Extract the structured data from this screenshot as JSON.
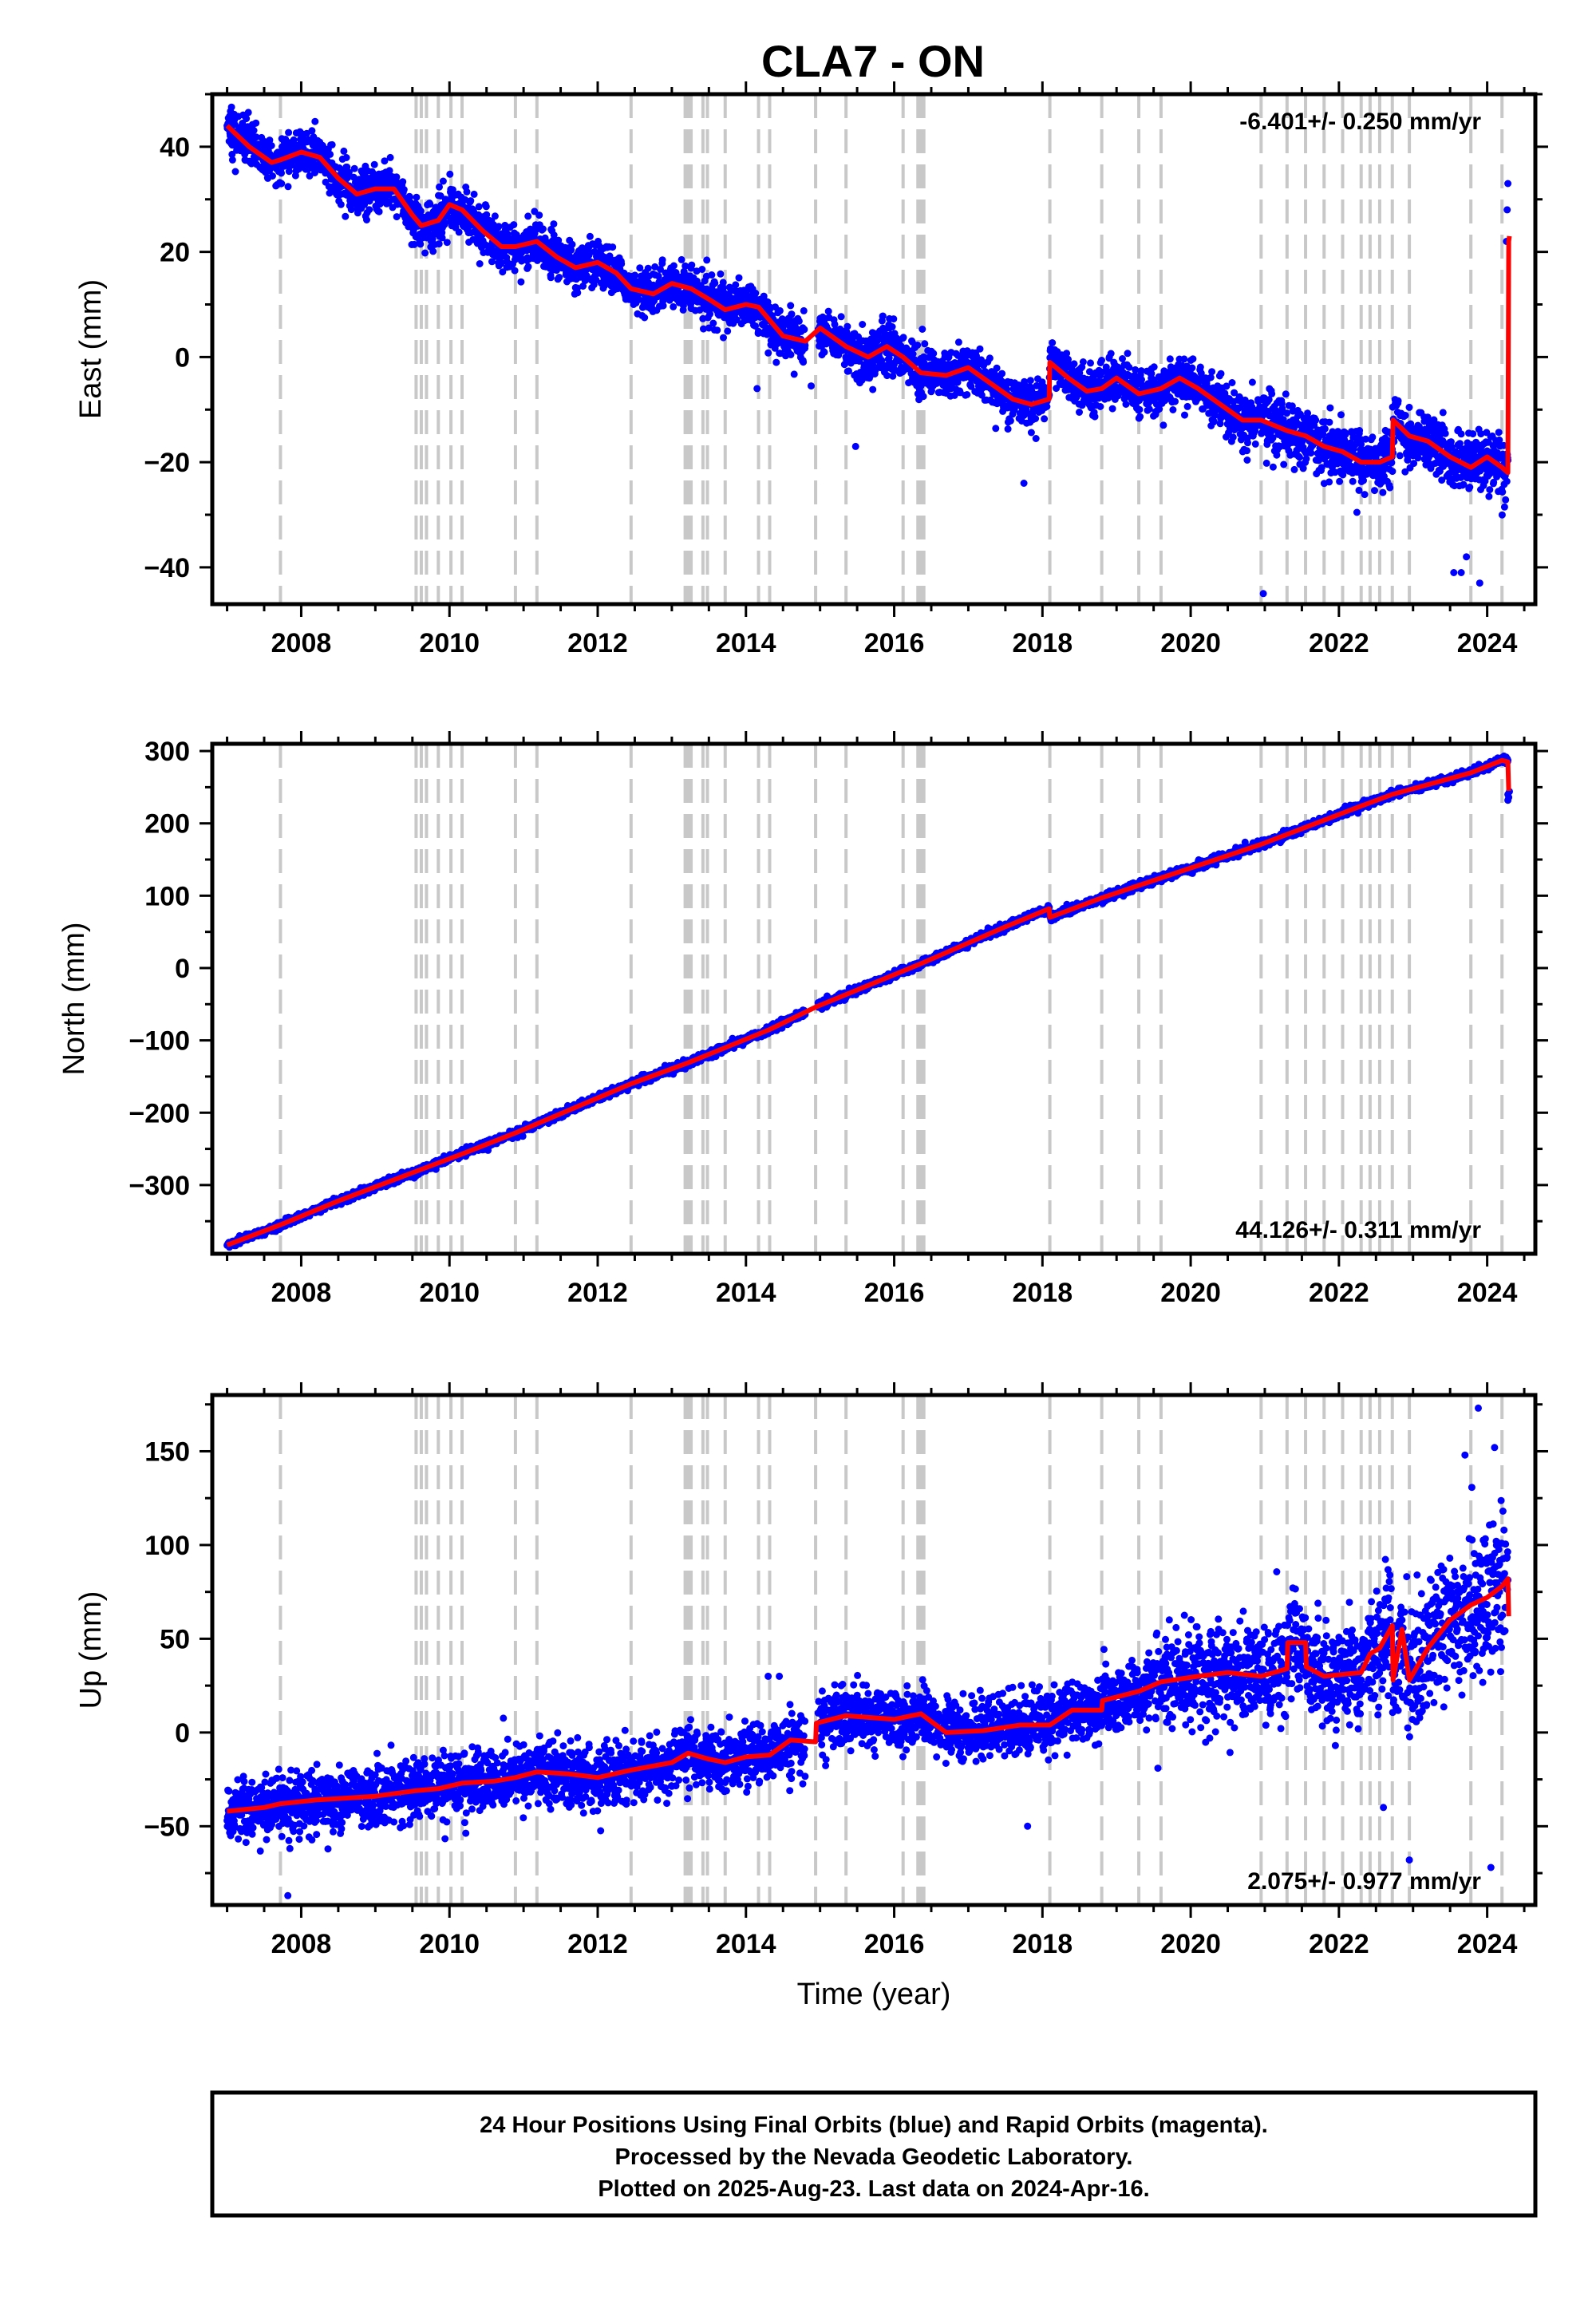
{
  "chart_data": {
    "type": "scatter",
    "title": "CLA7 - ON",
    "xlabel": "Time (year)",
    "xlim": [
      2006.8,
      2024.65
    ],
    "x_ticks": [
      2008,
      2010,
      2012,
      2014,
      2016,
      2018,
      2020,
      2022,
      2024
    ],
    "x_tick_labels": [
      "2008",
      "2010",
      "2012",
      "2014",
      "2016",
      "2018",
      "2020",
      "2022",
      "2024"
    ],
    "equipment_changes": [
      2007.72,
      2009.55,
      2009.62,
      2009.69,
      2009.85,
      2010.02,
      2010.17,
      2010.89,
      2011.18,
      2012.45,
      2013.18,
      2013.22,
      2013.26,
      2013.42,
      2013.48,
      2013.72,
      2014.17,
      2014.32,
      2014.94,
      2015.35,
      2016.12,
      2016.32,
      2016.36,
      2016.4,
      2018.1,
      2018.8,
      2019.3,
      2019.6,
      2020.95,
      2021.3,
      2021.55,
      2021.8,
      2022.05,
      2022.3,
      2022.42,
      2022.55,
      2022.72,
      2022.95,
      2023.78,
      2024.2
    ],
    "series_colors": {
      "final_orbits": "#0000ff",
      "model_fit": "#ff0000",
      "equipment_change": "#c8c8c8"
    },
    "panels": [
      {
        "ylabel": "East (mm)",
        "ylim": [
          -47,
          50
        ],
        "y_ticks": [
          -40,
          -20,
          0,
          20,
          40
        ],
        "y_tick_labels": [
          "−40",
          "−20",
          "0",
          "20",
          "40"
        ],
        "rate_text": "-6.401+/- 0.250 mm/yr",
        "rate_position": "top-right",
        "gap": [
          2014.8,
          2014.97
        ],
        "noise": 2.2,
        "outliers": [
          [
            2020.98,
            -45
          ],
          [
            2023.55,
            -41
          ],
          [
            2023.65,
            -41
          ],
          [
            2023.72,
            -38
          ],
          [
            2023.9,
            -43
          ],
          [
            2024.28,
            33
          ],
          [
            2024.27,
            28
          ],
          [
            2024.26,
            22
          ],
          [
            2017.75,
            -24
          ],
          [
            2015.48,
            -17
          ],
          [
            2014.15,
            -6
          ],
          [
            2014.88,
            -5.5
          ]
        ],
        "fit": [
          [
            2007.0,
            44
          ],
          [
            2007.3,
            40
          ],
          [
            2007.6,
            37
          ],
          [
            2007.72,
            37.5
          ],
          [
            2008.0,
            39
          ],
          [
            2008.25,
            38
          ],
          [
            2008.5,
            34
          ],
          [
            2008.75,
            31
          ],
          [
            2009.0,
            32
          ],
          [
            2009.25,
            32
          ],
          [
            2009.5,
            27
          ],
          [
            2009.62,
            25
          ],
          [
            2009.85,
            26
          ],
          [
            2010.0,
            29
          ],
          [
            2010.17,
            28
          ],
          [
            2010.45,
            24
          ],
          [
            2010.7,
            21
          ],
          [
            2010.89,
            21
          ],
          [
            2011.18,
            22
          ],
          [
            2011.45,
            19
          ],
          [
            2011.7,
            17
          ],
          [
            2012.0,
            18
          ],
          [
            2012.25,
            16
          ],
          [
            2012.45,
            13
          ],
          [
            2012.75,
            12
          ],
          [
            2013.0,
            14
          ],
          [
            2013.26,
            13
          ],
          [
            2013.5,
            11
          ],
          [
            2013.72,
            9
          ],
          [
            2014.0,
            10
          ],
          [
            2014.17,
            9.5
          ],
          [
            2014.5,
            4
          ],
          [
            2014.8,
            3
          ],
          [
            2015.0,
            5.5
          ],
          [
            2015.35,
            2
          ],
          [
            2015.65,
            0
          ],
          [
            2015.9,
            2
          ],
          [
            2016.12,
            0
          ],
          [
            2016.36,
            -3
          ],
          [
            2016.7,
            -3.5
          ],
          [
            2017.0,
            -2
          ],
          [
            2017.3,
            -5
          ],
          [
            2017.6,
            -8
          ],
          [
            2017.85,
            -9
          ],
          [
            2018.09,
            -8
          ],
          [
            2018.1,
            -1
          ],
          [
            2018.35,
            -4
          ],
          [
            2018.6,
            -6.5
          ],
          [
            2018.8,
            -6
          ],
          [
            2019.0,
            -4
          ],
          [
            2019.3,
            -7
          ],
          [
            2019.6,
            -6
          ],
          [
            2019.85,
            -4
          ],
          [
            2020.1,
            -6
          ],
          [
            2020.4,
            -9
          ],
          [
            2020.7,
            -12
          ],
          [
            2020.95,
            -12
          ],
          [
            2021.3,
            -14
          ],
          [
            2021.55,
            -15
          ],
          [
            2021.8,
            -17
          ],
          [
            2022.05,
            -18
          ],
          [
            2022.3,
            -20
          ],
          [
            2022.55,
            -20
          ],
          [
            2022.72,
            -19
          ],
          [
            2022.73,
            -12
          ],
          [
            2022.95,
            -15
          ],
          [
            2023.2,
            -16
          ],
          [
            2023.5,
            -19
          ],
          [
            2023.78,
            -21
          ],
          [
            2024.0,
            -19
          ],
          [
            2024.2,
            -21
          ],
          [
            2024.28,
            -22
          ],
          [
            2024.29,
            22
          ],
          [
            2024.3,
            23
          ]
        ]
      },
      {
        "ylabel": "North (mm)",
        "ylim": [
          -395,
          310
        ],
        "y_ticks": [
          -300,
          -200,
          -100,
          0,
          100,
          200,
          300
        ],
        "y_tick_labels": [
          "−300",
          "−200",
          "−100",
          "0",
          "100",
          "200",
          "300"
        ],
        "rate_text": "44.126+/- 0.311 mm/yr",
        "rate_position": "bottom-right",
        "gap": [
          2014.8,
          2014.97
        ],
        "noise": 2.6,
        "outliers": [
          [
            2024.28,
            240
          ],
          [
            2024.28,
            232
          ],
          [
            2024.29,
            236
          ],
          [
            2024.3,
            244
          ]
        ],
        "fit": [
          [
            2007.0,
            -383
          ],
          [
            2007.72,
            -355
          ],
          [
            2008.5,
            -322
          ],
          [
            2009.5,
            -283
          ],
          [
            2010.17,
            -257
          ],
          [
            2010.89,
            -228
          ],
          [
            2012.45,
            -160
          ],
          [
            2013.22,
            -131
          ],
          [
            2014.32,
            -85
          ],
          [
            2014.94,
            -54
          ],
          [
            2016.36,
            6
          ],
          [
            2017.5,
            57
          ],
          [
            2018.09,
            82
          ],
          [
            2018.1,
            70
          ],
          [
            2018.8,
            97
          ],
          [
            2020.95,
            171
          ],
          [
            2022.3,
            224
          ],
          [
            2022.72,
            240
          ],
          [
            2023.78,
            270
          ],
          [
            2024.2,
            287
          ],
          [
            2024.28,
            285
          ],
          [
            2024.29,
            245
          ]
        ]
      },
      {
        "ylabel": "Up (mm)",
        "ylim": [
          -92,
          180
        ],
        "y_ticks": [
          -50,
          0,
          50,
          100,
          150
        ],
        "y_tick_labels": [
          "−50",
          "0",
          "50",
          "100",
          "150"
        ],
        "rate_text": "2.075+/- 0.977 mm/yr",
        "rate_position": "bottom-right",
        "gap": [
          2014.8,
          2014.97
        ],
        "noise": 8,
        "outliers": [
          [
            2007.82,
            -87
          ],
          [
            2023.88,
            173
          ],
          [
            2023.7,
            148
          ],
          [
            2024.1,
            152
          ],
          [
            2024.05,
            -72
          ],
          [
            2022.95,
            -68
          ],
          [
            2022.6,
            -40
          ],
          [
            2017.8,
            -50
          ],
          [
            2014.45,
            30
          ],
          [
            2014.3,
            30
          ]
        ],
        "fit": [
          [
            2007.0,
            -42
          ],
          [
            2007.5,
            -40
          ],
          [
            2007.72,
            -38
          ],
          [
            2008.2,
            -36
          ],
          [
            2008.6,
            -35
          ],
          [
            2009.0,
            -34
          ],
          [
            2009.55,
            -31
          ],
          [
            2009.85,
            -30
          ],
          [
            2010.17,
            -27
          ],
          [
            2010.6,
            -26
          ],
          [
            2010.89,
            -24
          ],
          [
            2011.18,
            -21
          ],
          [
            2011.6,
            -22
          ],
          [
            2012.0,
            -24
          ],
          [
            2012.45,
            -20
          ],
          [
            2013.0,
            -16
          ],
          [
            2013.22,
            -11
          ],
          [
            2013.48,
            -14
          ],
          [
            2013.72,
            -16
          ],
          [
            2014.0,
            -13
          ],
          [
            2014.32,
            -12
          ],
          [
            2014.6,
            -4
          ],
          [
            2014.94,
            -5
          ],
          [
            2014.95,
            5
          ],
          [
            2015.35,
            9
          ],
          [
            2016.0,
            7
          ],
          [
            2016.36,
            10
          ],
          [
            2016.7,
            0
          ],
          [
            2017.2,
            1
          ],
          [
            2017.7,
            4
          ],
          [
            2018.1,
            4
          ],
          [
            2018.4,
            12
          ],
          [
            2018.8,
            12
          ],
          [
            2018.81,
            17
          ],
          [
            2019.3,
            22
          ],
          [
            2019.6,
            27
          ],
          [
            2020.1,
            30
          ],
          [
            2020.5,
            32
          ],
          [
            2020.95,
            30
          ],
          [
            2021.3,
            34
          ],
          [
            2021.31,
            48
          ],
          [
            2021.55,
            48
          ],
          [
            2021.56,
            35
          ],
          [
            2021.8,
            30
          ],
          [
            2022.3,
            32
          ],
          [
            2022.42,
            42
          ],
          [
            2022.55,
            45
          ],
          [
            2022.72,
            57
          ],
          [
            2022.73,
            28
          ],
          [
            2022.85,
            55
          ],
          [
            2022.95,
            28
          ],
          [
            2023.2,
            45
          ],
          [
            2023.5,
            60
          ],
          [
            2023.78,
            68
          ],
          [
            2024.0,
            72
          ],
          [
            2024.2,
            78
          ],
          [
            2024.28,
            82
          ],
          [
            2024.29,
            62
          ]
        ]
      }
    ]
  },
  "footer": {
    "line1": "24 Hour Positions Using Final Orbits (blue) and Rapid Orbits (magenta).",
    "line2": "Processed by the Nevada Geodetic Laboratory.",
    "line3": "Plotted on 2025-Aug-23. Last data on 2024-Apr-16."
  }
}
